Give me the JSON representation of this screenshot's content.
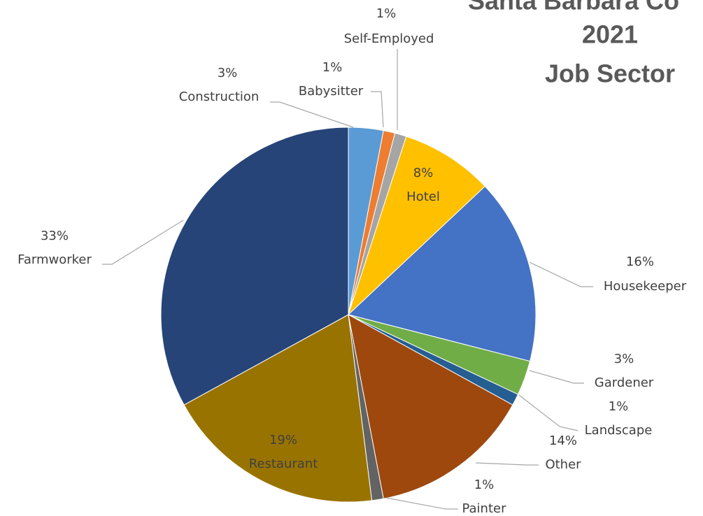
{
  "chart_data": {
    "type": "pie",
    "title": [
      "Santa Barbara Co",
      "2021",
      "Job Sector"
    ],
    "categories": [
      "Construction",
      "Babysitter",
      "Self-Employed",
      "Hotel",
      "Housekeeper",
      "Gardener",
      "Landscape",
      "Other",
      "Painter",
      "Restaurant",
      "Farmworker"
    ],
    "values": [
      3,
      1,
      1,
      8,
      16,
      3,
      1,
      14,
      1,
      19,
      33
    ],
    "value_labels": [
      "3%",
      "1%",
      "1%",
      "8%",
      "16%",
      "3%",
      "1%",
      "14%",
      "1%",
      "19%",
      "33%"
    ],
    "colors": [
      "#5b9bd5",
      "#ed7d31",
      "#a5a5a5",
      "#ffc000",
      "#4472c4",
      "#70ad47",
      "#255e91",
      "#9e480e",
      "#636363",
      "#997300",
      "#264478"
    ]
  }
}
